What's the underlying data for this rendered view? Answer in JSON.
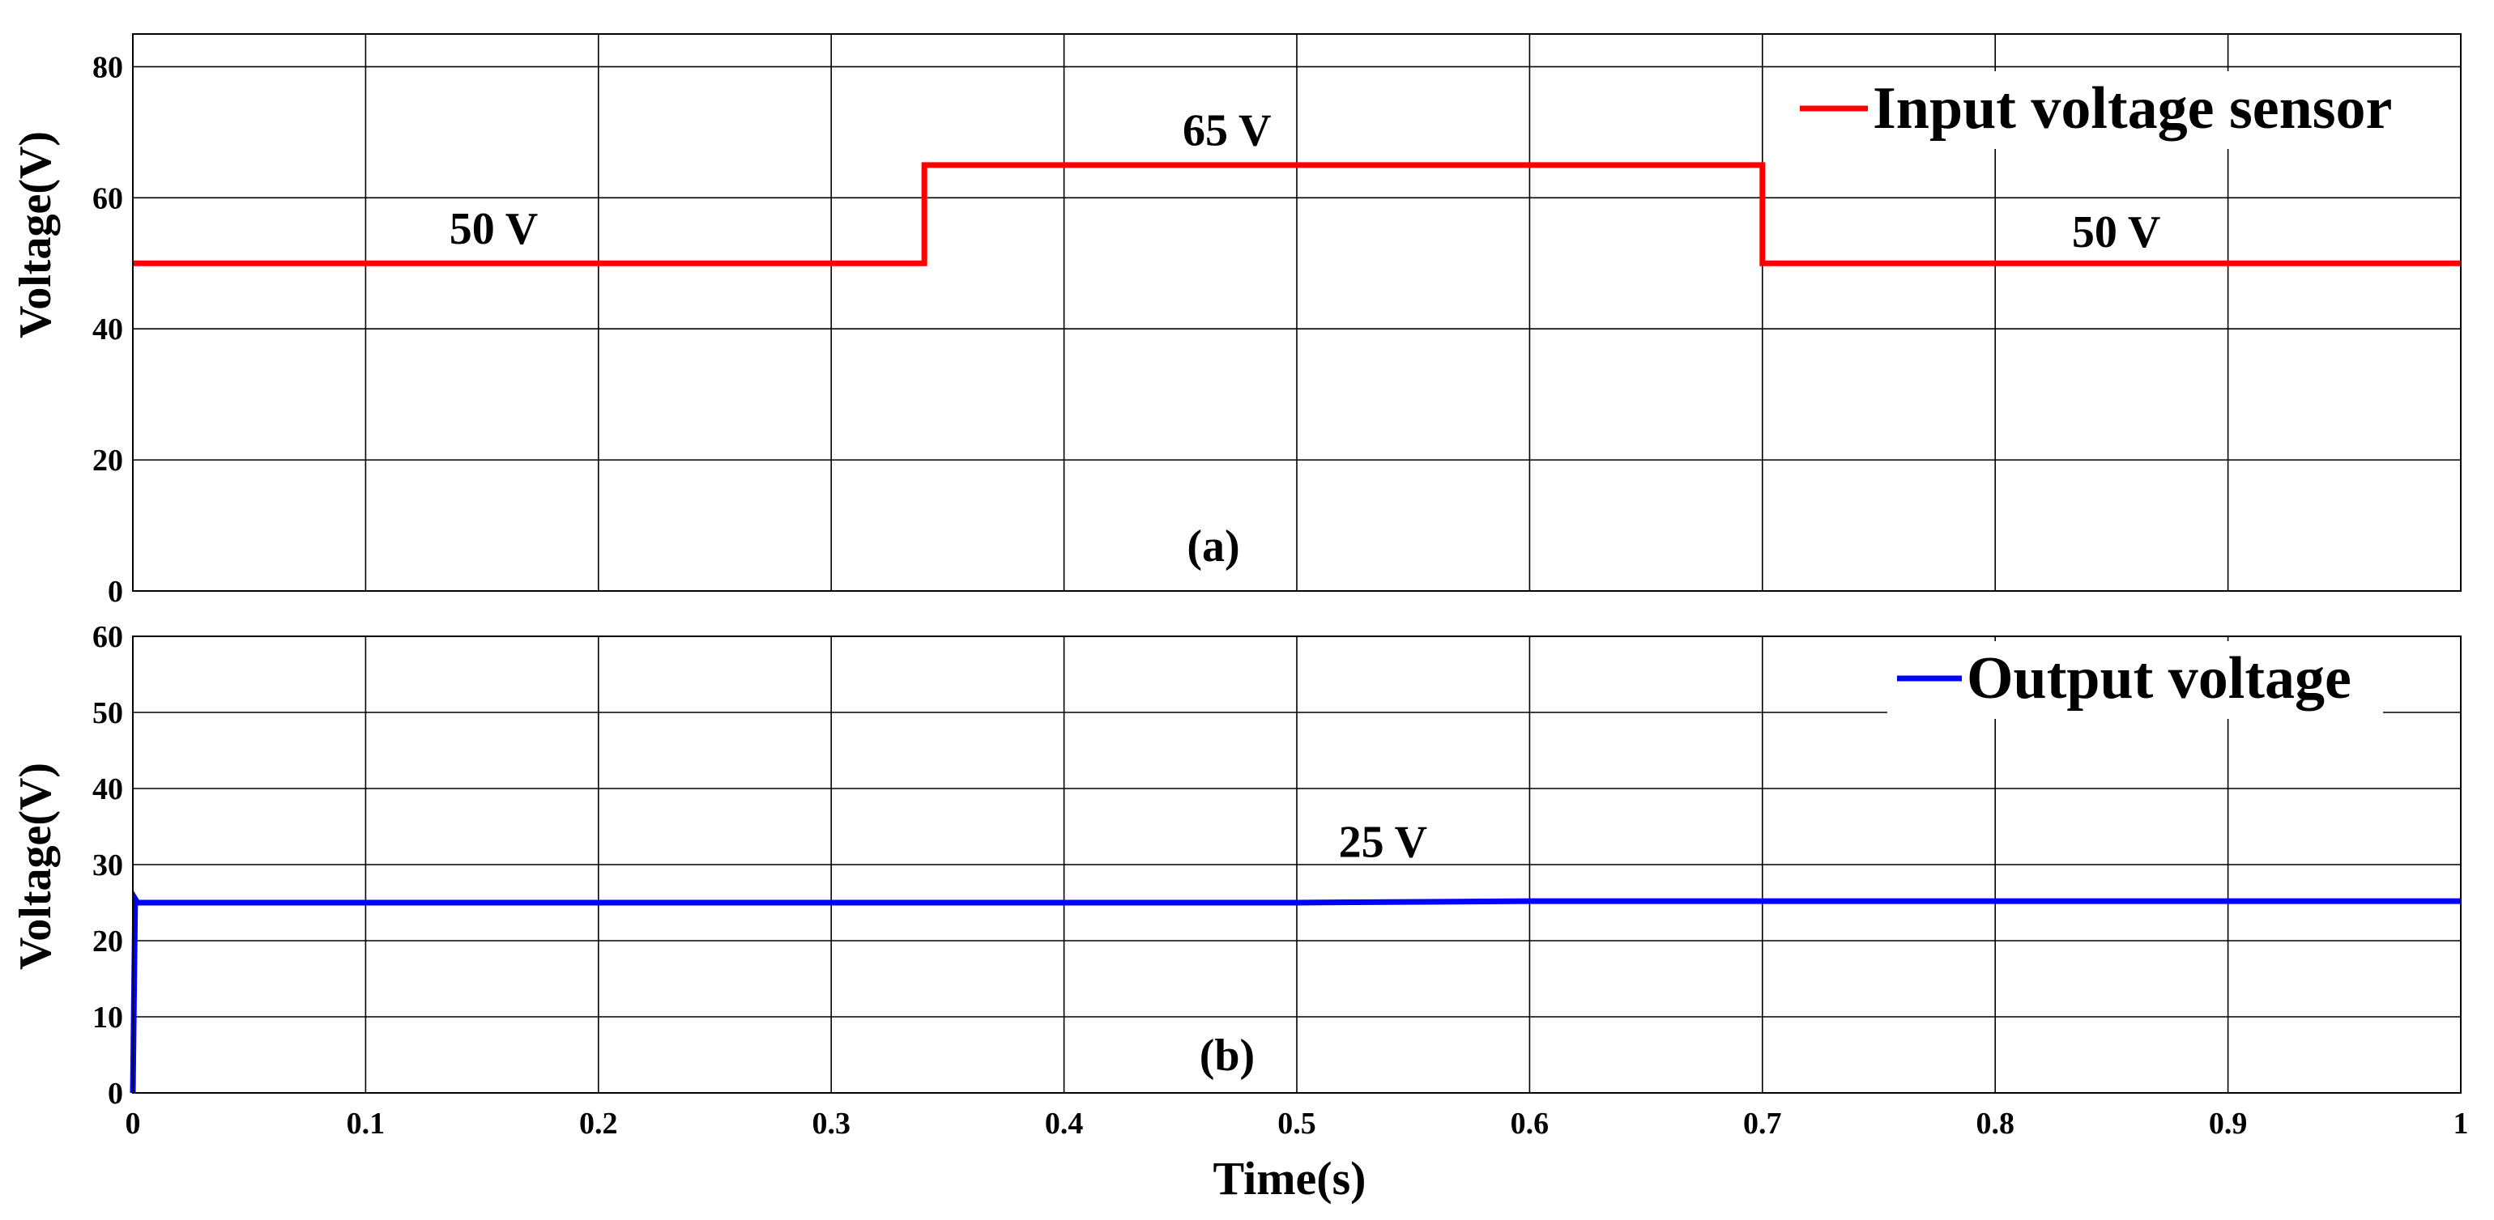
{
  "chart_data": [
    {
      "id": "a",
      "type": "line",
      "ylabel": "Voltage(V)",
      "xlim": [
        0,
        1
      ],
      "ylim": [
        0,
        85
      ],
      "xticks": [
        0,
        0.1,
        0.2,
        0.3,
        0.4,
        0.5,
        0.6,
        0.7,
        0.8,
        0.9,
        1
      ],
      "yticks": [
        0,
        20,
        40,
        60,
        80
      ],
      "grid": true,
      "legend_position": "top-right",
      "panel_label": "(a)",
      "series": [
        {
          "name": "Input voltage sensor",
          "color": "#ff0000",
          "x": [
            0,
            0.34,
            0.34,
            0.7,
            0.7,
            1.0
          ],
          "y": [
            50,
            50,
            65,
            65,
            50,
            50
          ]
        }
      ],
      "annotations": [
        {
          "text": "50 V",
          "x": 0.155,
          "y": 53
        },
        {
          "text": "65 V",
          "x": 0.47,
          "y": 68
        },
        {
          "text": "50 V",
          "x": 0.852,
          "y": 52.5
        }
      ]
    },
    {
      "id": "b",
      "type": "line",
      "ylabel": "Voltage(V)",
      "xlabel": "Time(s)",
      "xlim": [
        0,
        1
      ],
      "ylim": [
        0,
        60
      ],
      "xticks": [
        0,
        0.1,
        0.2,
        0.3,
        0.4,
        0.5,
        0.6,
        0.7,
        0.8,
        0.9,
        1
      ],
      "xticklabels": [
        "0",
        "0.1",
        "0.2",
        "0.3",
        "0.4",
        "0.5",
        "0.6",
        "0.7",
        "0.8",
        "0.9",
        "1"
      ],
      "yticks": [
        0,
        10,
        20,
        30,
        40,
        50,
        60
      ],
      "grid": true,
      "legend_position": "top-right",
      "panel_label": "(b)",
      "series": [
        {
          "name": "Output voltage",
          "color": "#0000ff",
          "x": [
            0,
            0.001,
            0.002,
            0.1,
            0.3,
            0.5,
            0.6,
            0.8,
            1.0
          ],
          "y": [
            0,
            25.5,
            25.0,
            25.0,
            25.0,
            25.0,
            25.2,
            25.2,
            25.2
          ]
        }
      ],
      "annotations": [
        {
          "text": "25 V",
          "x": 0.537,
          "y": 31
        }
      ]
    }
  ]
}
